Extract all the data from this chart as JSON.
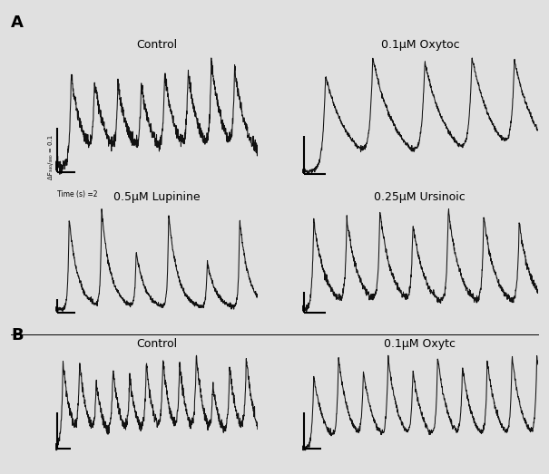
{
  "panel_labels": {
    "A_top_left": "Control",
    "A_top_right": "0.1μM Oxytoc",
    "A_bot_left": "0.5μM Lupinine",
    "A_bot_right": "0.25μM Ursinoic",
    "B_left": "Control",
    "B_right": "0.1μM Oxytc"
  },
  "scalebar_label_y": "ΔF₃₄₀/₃₈₀ = 0.1",
  "scalebar_label_x": "Time (s) =2",
  "bg_color": "#e8e8e8",
  "line_color": "#111111",
  "title_fontsize": 9,
  "label_fontsize": 13
}
